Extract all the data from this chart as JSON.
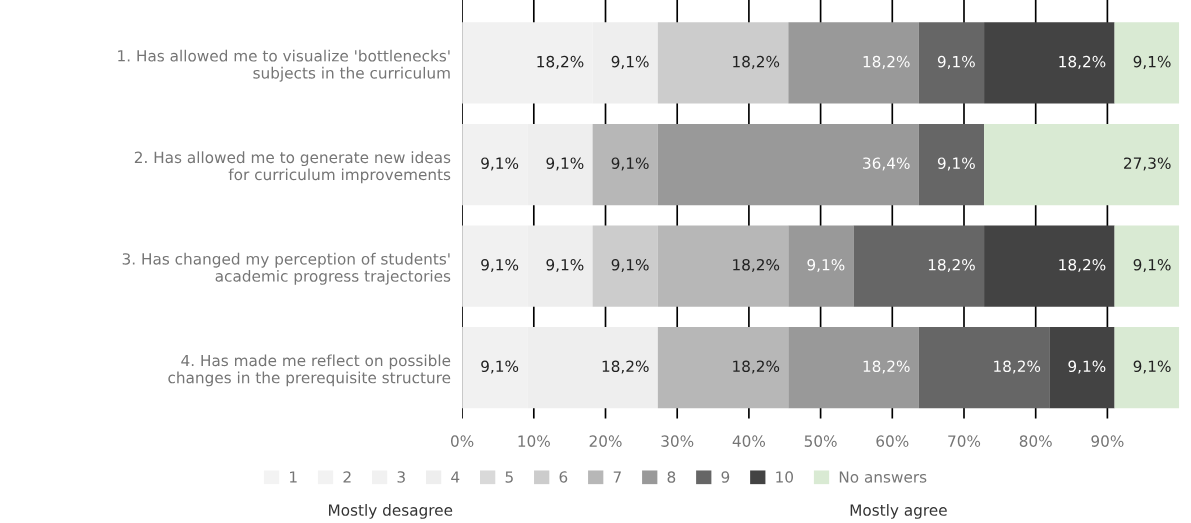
{
  "chart_data": {
    "type": "bar",
    "orientation": "horizontal",
    "stacked": true,
    "categories": [
      "1. Has allowed me to visualize 'bottlenecks'\nsubjects in the curriculum",
      "2. Has allowed me to generate new ideas\nfor curriculum improvements",
      "3. Has changed my perception of students'\nacademic progress trajectories",
      "4. Has made me reflect on possible\nchanges in the prerequisite structure"
    ],
    "series": [
      {
        "name": "1",
        "color": "#f3f3f3",
        "values": [
          null,
          null,
          null,
          null
        ],
        "value_labels": [
          null,
          null,
          null,
          null
        ]
      },
      {
        "name": "2",
        "color": "#f2f2f2",
        "values": [
          null,
          null,
          null,
          null
        ],
        "value_labels": [
          null,
          null,
          null,
          null
        ]
      },
      {
        "name": "3",
        "color": "#f1f1f1",
        "values": [
          18.2,
          9.1,
          9.1,
          9.1
        ],
        "value_labels": [
          "18,2%",
          "9,1%",
          "9,1%",
          "9,1%"
        ]
      },
      {
        "name": "4",
        "color": "#eeeeee",
        "values": [
          9.1,
          9.1,
          9.1,
          18.2
        ],
        "value_labels": [
          "9,1%",
          "9,1%",
          "9,1%",
          "18,2%"
        ]
      },
      {
        "name": "5",
        "color": "#d9d9d9",
        "values": [
          null,
          null,
          null,
          null
        ],
        "value_labels": [
          null,
          null,
          null,
          null
        ]
      },
      {
        "name": "6",
        "color": "#cccccc",
        "values": [
          18.2,
          null,
          9.1,
          null
        ],
        "value_labels": [
          "18,2%",
          null,
          "9,1%",
          null
        ]
      },
      {
        "name": "7",
        "color": "#b7b7b7",
        "values": [
          null,
          9.1,
          18.2,
          18.2
        ],
        "value_labels": [
          null,
          "9,1%",
          "18,2%",
          "18,2%"
        ]
      },
      {
        "name": "8",
        "color": "#999999",
        "values": [
          18.2,
          36.4,
          9.1,
          18.2
        ],
        "value_labels": [
          "18,2%",
          "36,4%",
          "9,1%",
          "18,2%"
        ]
      },
      {
        "name": "9",
        "color": "#666666",
        "values": [
          9.1,
          9.1,
          18.2,
          18.2
        ],
        "value_labels": [
          "9,1%",
          "9,1%",
          "18,2%",
          "18,2%"
        ]
      },
      {
        "name": "10",
        "color": "#434343",
        "values": [
          18.2,
          null,
          18.2,
          9.1
        ],
        "value_labels": [
          "18,2%",
          null,
          "18,2%",
          "9,1%"
        ]
      },
      {
        "name": "No answers",
        "color": "#d9ead3",
        "values": [
          9.1,
          27.3,
          9.1,
          9.1
        ],
        "value_labels": [
          "9,1%",
          "27,3%",
          "9,1%",
          "9,1%"
        ]
      }
    ],
    "xlim": [
      0,
      100
    ],
    "xticks": [
      {
        "value": 0,
        "label": "0%"
      },
      {
        "value": 10,
        "label": "10%"
      },
      {
        "value": 20,
        "label": "20%"
      },
      {
        "value": 30,
        "label": "30%"
      },
      {
        "value": 40,
        "label": "40%"
      },
      {
        "value": 50,
        "label": "50%"
      },
      {
        "value": 60,
        "label": "60%"
      },
      {
        "value": 70,
        "label": "70%"
      },
      {
        "value": 80,
        "label": "80%"
      },
      {
        "value": 90,
        "label": "90%"
      }
    ],
    "grid": "x",
    "legend": "bottom",
    "annotations": [
      "Mostly desagree",
      "Mostly agree"
    ]
  }
}
